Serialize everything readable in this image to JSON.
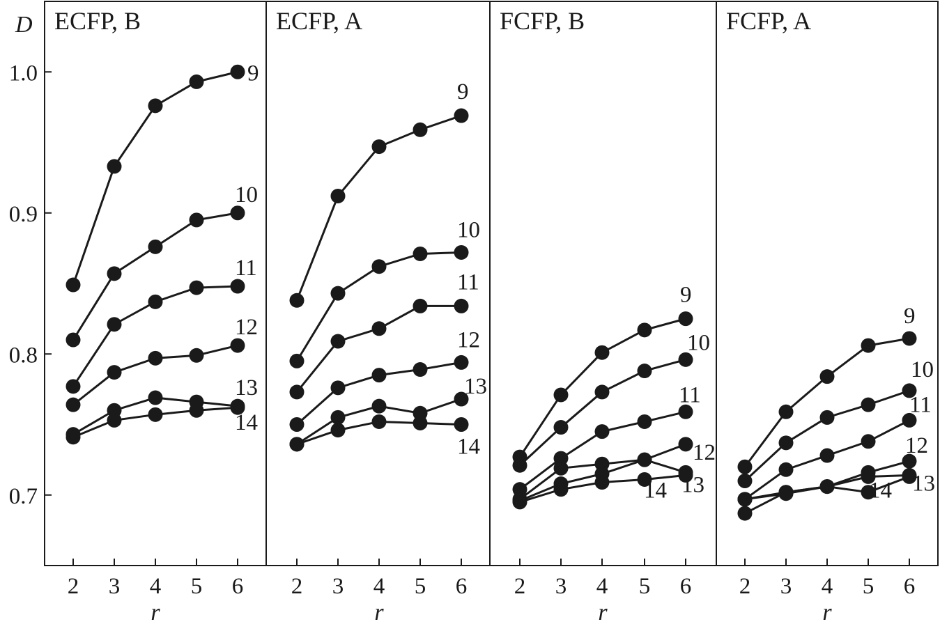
{
  "chart_data": {
    "type": "line",
    "ylabel": "D",
    "xlabel": "r",
    "x": [
      2,
      3,
      4,
      5,
      6
    ],
    "ylim": [
      0.65,
      1.05
    ],
    "yticks": [
      "0.7",
      "0.8",
      "0.9",
      "1.0"
    ],
    "xticks": [
      "2",
      "3",
      "4",
      "5",
      "6"
    ],
    "grid": false,
    "panels": [
      {
        "title": "ECFP, B",
        "series": [
          {
            "name": "9",
            "values": [
              0.849,
              0.933,
              0.976,
              0.993,
              1.0
            ]
          },
          {
            "name": "10",
            "values": [
              0.81,
              0.857,
              0.876,
              0.895,
              0.9
            ]
          },
          {
            "name": "11",
            "values": [
              0.777,
              0.821,
              0.837,
              0.847,
              0.848
            ]
          },
          {
            "name": "12",
            "values": [
              0.764,
              0.787,
              0.797,
              0.799,
              0.806
            ]
          },
          {
            "name": "13",
            "values": [
              0.743,
              0.76,
              0.769,
              0.766,
              0.763
            ]
          },
          {
            "name": "14",
            "values": [
              0.741,
              0.753,
              0.757,
              0.76,
              0.762
            ]
          }
        ]
      },
      {
        "title": "ECFP, A",
        "series": [
          {
            "name": "9",
            "values": [
              0.838,
              0.912,
              0.947,
              0.959,
              0.969
            ]
          },
          {
            "name": "10",
            "values": [
              0.795,
              0.843,
              0.862,
              0.871,
              0.872
            ]
          },
          {
            "name": "11",
            "values": [
              0.773,
              0.809,
              0.818,
              0.834,
              0.834
            ]
          },
          {
            "name": "12",
            "values": [
              0.75,
              0.776,
              0.785,
              0.789,
              0.794
            ]
          },
          {
            "name": "13",
            "values": [
              0.736,
              0.755,
              0.763,
              0.758,
              0.768
            ]
          },
          {
            "name": "14",
            "values": [
              0.736,
              0.746,
              0.752,
              0.751,
              0.75
            ]
          }
        ]
      },
      {
        "title": "FCFP, B",
        "series": [
          {
            "name": "9",
            "values": [
              0.727,
              0.771,
              0.801,
              0.817,
              0.825
            ]
          },
          {
            "name": "10",
            "values": [
              0.721,
              0.748,
              0.773,
              0.788,
              0.796
            ]
          },
          {
            "name": "11",
            "values": [
              0.704,
              0.726,
              0.745,
              0.752,
              0.759
            ]
          },
          {
            "name": "12",
            "values": [
              0.697,
              0.719,
              0.722,
              0.725,
              0.736
            ]
          },
          {
            "name": "13",
            "values": [
              0.696,
              0.708,
              0.715,
              0.725,
              0.716
            ]
          },
          {
            "name": "14",
            "values": [
              0.695,
              0.704,
              0.709,
              0.711,
              0.714
            ]
          }
        ]
      },
      {
        "title": "FCFP, A",
        "series": [
          {
            "name": "9",
            "values": [
              0.72,
              0.759,
              0.784,
              0.806,
              0.811
            ]
          },
          {
            "name": "10",
            "values": [
              0.71,
              0.737,
              0.755,
              0.764,
              0.774
            ]
          },
          {
            "name": "11",
            "values": [
              0.697,
              0.718,
              0.728,
              0.738,
              0.753
            ]
          },
          {
            "name": "12",
            "values": [
              0.697,
              0.702,
              0.706,
              0.716,
              0.724
            ]
          },
          {
            "name": "13",
            "values": [
              0.697,
              0.701,
              0.706,
              0.713,
              0.714
            ]
          },
          {
            "name": "14",
            "values": [
              0.687,
              0.702,
              0.706,
              0.702,
              0.713
            ]
          }
        ]
      }
    ]
  }
}
